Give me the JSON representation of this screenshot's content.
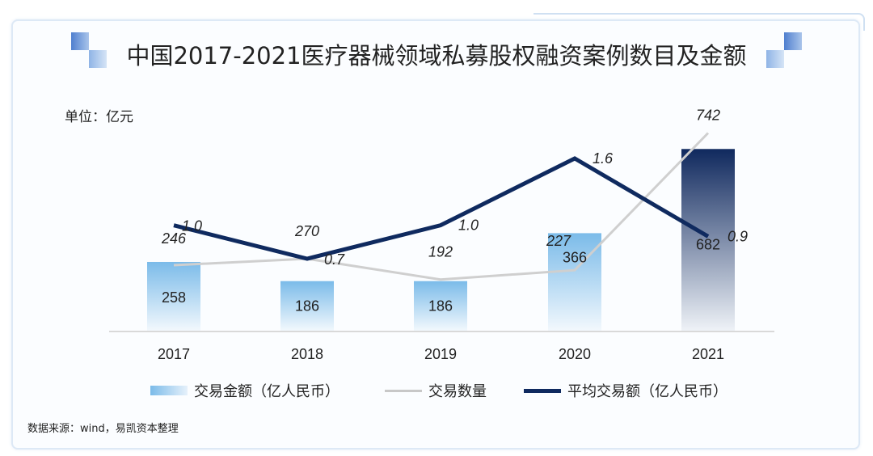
{
  "chart_data": {
    "type": "bar",
    "title": "中国2017-2021医疗器械领域私募股权融资案例数目及金额",
    "unit_label": "单位：亿元",
    "categories": [
      "2017",
      "2018",
      "2019",
      "2020",
      "2021"
    ],
    "series": [
      {
        "name": "交易金额（亿人民币）",
        "type": "bar",
        "values": [
          258,
          186,
          186,
          366,
          682
        ],
        "color_top": "#7bbbe9",
        "color_top_2021": "#10295e"
      },
      {
        "name": "交易数量",
        "type": "line",
        "values": [
          246,
          270,
          192,
          227,
          742
        ],
        "color": "#c8c8c8"
      },
      {
        "name": "平均交易额（亿人民币）",
        "type": "line",
        "axis": "secondary",
        "values": [
          1.0,
          0.7,
          1.0,
          1.6,
          0.9
        ],
        "color": "#0f2a5f"
      }
    ],
    "primary_ylim": [
      0,
      820
    ],
    "grid": false,
    "legend_position": "bottom",
    "source": "数据来源：wind，易凯资本整理"
  }
}
